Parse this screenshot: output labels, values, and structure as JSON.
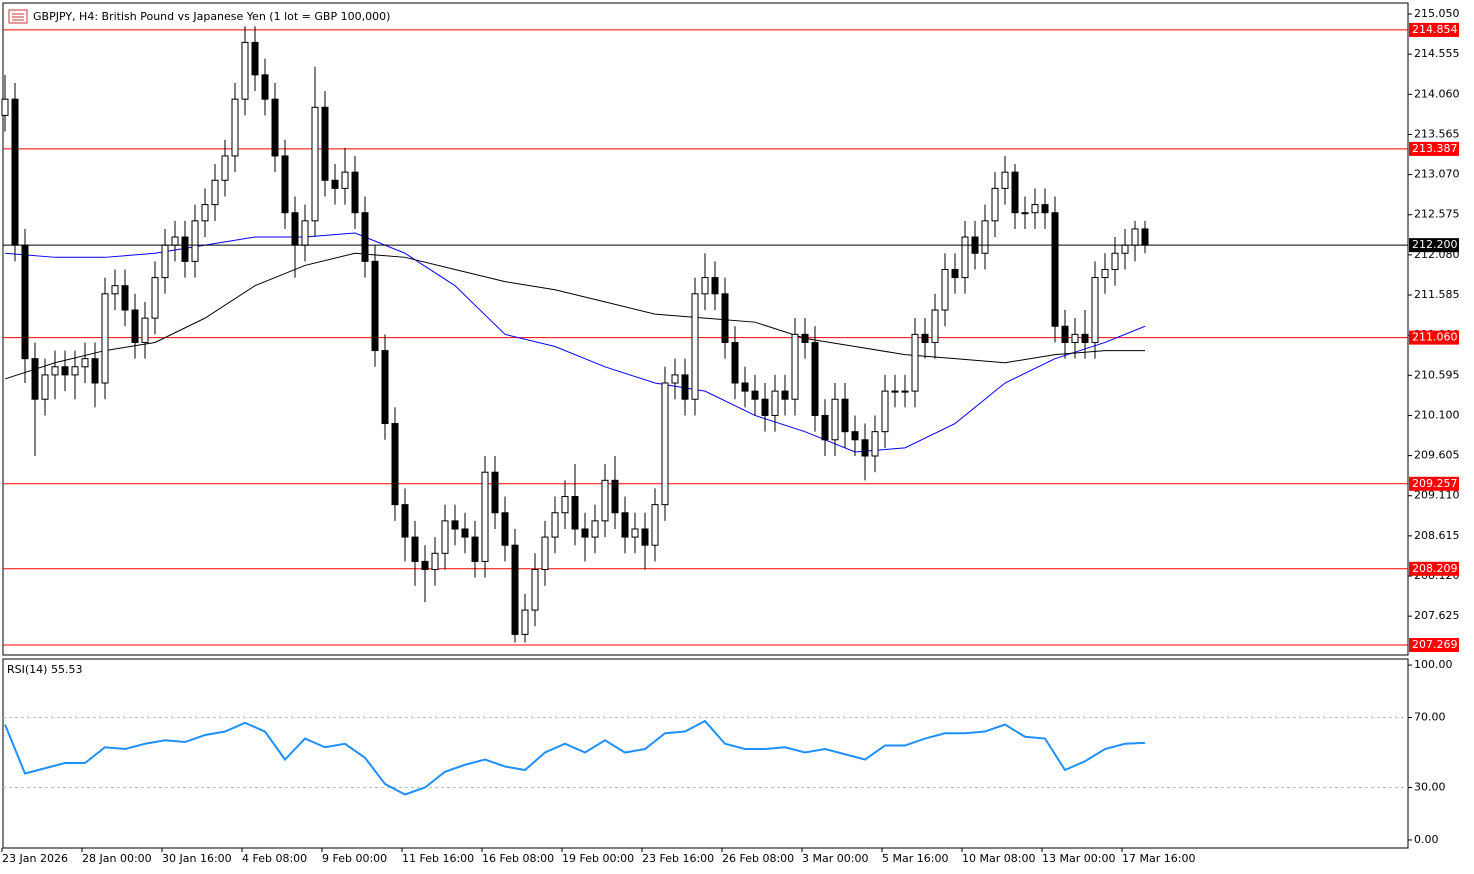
{
  "chart_data": {
    "type": "candlestick",
    "title": "GBPJPY, H4:  British Pound vs Japanese Yen (1 lot = GBP 100,000)",
    "open": [
      213.8,
      214.0,
      212.2,
      210.8,
      210.3,
      210.6,
      210.7,
      210.6,
      210.7,
      210.8,
      210.5,
      211.6,
      211.7,
      211.4,
      211.0,
      211.3,
      211.8,
      212.2,
      212.3,
      212.0,
      212.5,
      212.7,
      213.0,
      213.3,
      214.0,
      214.7,
      214.3,
      214.0,
      213.3,
      212.6,
      212.2,
      212.5,
      213.9,
      213.0,
      212.9,
      213.1,
      212.6,
      212.0,
      210.9,
      210.0,
      209.0,
      208.6,
      208.3,
      208.2,
      208.4,
      208.8,
      208.7,
      208.6,
      208.3,
      209.4,
      208.9,
      208.5,
      207.4,
      207.7,
      208.2,
      208.6,
      208.9,
      209.1,
      208.7,
      208.6,
      208.8,
      209.3,
      208.9,
      208.6,
      208.7,
      208.5,
      209.0,
      210.5,
      210.6,
      210.3,
      211.6,
      211.8,
      211.6,
      211.0,
      210.5,
      210.4,
      210.3,
      210.1,
      210.4,
      210.3,
      211.1,
      211.0,
      210.1,
      209.8,
      210.3,
      209.9,
      209.8,
      209.6,
      209.9,
      210.4,
      210.4,
      210.4,
      211.1,
      211.0,
      211.4,
      211.9,
      211.8,
      212.3,
      212.1,
      212.5,
      212.9,
      213.1,
      212.6,
      212.6,
      212.7,
      212.6,
      211.2,
      211.0,
      211.1,
      211.0,
      211.8,
      211.9,
      212.1,
      212.2,
      212.4
    ],
    "high": [
      214.3,
      214.2,
      212.4,
      211.0,
      210.8,
      210.9,
      210.9,
      210.9,
      211.0,
      211.0,
      211.8,
      211.9,
      211.9,
      211.6,
      211.5,
      212.0,
      212.4,
      212.5,
      212.5,
      212.7,
      212.9,
      213.2,
      213.5,
      214.2,
      214.9,
      214.9,
      214.5,
      214.2,
      213.5,
      212.8,
      212.7,
      214.4,
      214.1,
      213.2,
      213.4,
      213.3,
      212.8,
      212.2,
      211.1,
      210.2,
      209.2,
      208.8,
      208.5,
      208.6,
      209.0,
      209.0,
      208.9,
      208.8,
      209.6,
      209.6,
      209.1,
      208.7,
      207.9,
      208.4,
      208.8,
      209.1,
      209.3,
      209.5,
      208.9,
      209.0,
      209.5,
      209.6,
      209.1,
      208.9,
      208.9,
      209.2,
      210.7,
      210.8,
      210.8,
      211.8,
      212.1,
      212.0,
      211.8,
      211.2,
      210.7,
      210.6,
      210.5,
      210.6,
      210.6,
      211.3,
      211.3,
      211.2,
      210.3,
      210.5,
      210.5,
      210.1,
      210.0,
      210.1,
      210.6,
      210.6,
      210.6,
      211.3,
      211.3,
      211.6,
      212.1,
      212.1,
      212.5,
      212.5,
      212.7,
      213.1,
      213.3,
      213.2,
      212.8,
      212.9,
      212.9,
      212.8,
      211.4,
      211.3,
      211.4,
      212.0,
      212.1,
      212.3,
      212.4,
      212.5,
      212.5
    ],
    "low": [
      213.6,
      212.0,
      210.5,
      209.6,
      210.1,
      210.3,
      210.4,
      210.3,
      210.5,
      210.2,
      210.3,
      211.4,
      211.2,
      210.8,
      210.8,
      211.1,
      211.6,
      212.0,
      211.8,
      211.8,
      212.3,
      212.5,
      212.8,
      213.1,
      213.8,
      214.1,
      213.8,
      213.1,
      212.4,
      211.8,
      212.0,
      212.3,
      212.8,
      212.7,
      212.7,
      212.4,
      211.8,
      210.7,
      209.8,
      208.8,
      208.3,
      208.0,
      207.8,
      208.0,
      208.2,
      208.5,
      208.4,
      208.1,
      208.1,
      208.7,
      208.3,
      207.3,
      207.3,
      207.5,
      208.0,
      208.4,
      208.7,
      208.5,
      208.3,
      208.4,
      208.6,
      208.7,
      208.4,
      208.4,
      208.2,
      208.3,
      208.8,
      210.3,
      210.1,
      210.1,
      211.4,
      211.4,
      210.8,
      210.3,
      210.2,
      210.1,
      209.9,
      209.9,
      210.1,
      210.1,
      210.8,
      209.9,
      209.6,
      209.6,
      209.7,
      209.6,
      209.3,
      209.4,
      209.7,
      210.2,
      210.2,
      210.2,
      210.8,
      210.8,
      211.2,
      211.6,
      211.6,
      211.9,
      211.9,
      212.3,
      212.7,
      212.4,
      212.4,
      212.4,
      212.4,
      211.0,
      210.8,
      210.8,
      210.8,
      210.8,
      211.6,
      211.7,
      211.9,
      212.0,
      212.1
    ],
    "close": [
      214.0,
      212.2,
      210.8,
      210.3,
      210.6,
      210.7,
      210.6,
      210.7,
      210.8,
      210.5,
      211.6,
      211.7,
      211.4,
      211.0,
      211.3,
      211.8,
      212.2,
      212.3,
      212.0,
      212.5,
      212.7,
      213.0,
      213.3,
      214.0,
      214.7,
      214.3,
      214.0,
      213.3,
      212.6,
      212.2,
      212.5,
      213.9,
      213.0,
      212.9,
      213.1,
      212.6,
      212.0,
      210.9,
      210.0,
      209.0,
      208.6,
      208.3,
      208.2,
      208.4,
      208.8,
      208.7,
      208.6,
      208.3,
      209.4,
      208.9,
      208.5,
      207.4,
      207.7,
      208.2,
      208.6,
      208.9,
      209.1,
      208.7,
      208.6,
      208.8,
      209.3,
      208.9,
      208.6,
      208.7,
      208.5,
      209.0,
      210.5,
      210.6,
      210.3,
      211.6,
      211.8,
      211.6,
      211.0,
      210.5,
      210.4,
      210.3,
      210.1,
      210.4,
      210.3,
      211.1,
      211.0,
      210.1,
      209.8,
      210.3,
      209.9,
      209.8,
      209.6,
      209.9,
      210.4,
      210.4,
      210.4,
      211.1,
      211.0,
      211.4,
      211.9,
      211.8,
      212.3,
      212.1,
      212.5,
      212.9,
      213.1,
      212.6,
      212.6,
      212.7,
      212.6,
      211.2,
      211.0,
      211.1,
      211.0,
      211.8,
      211.9,
      212.1,
      212.2,
      212.4,
      212.2
    ],
    "ylim": [
      207.146,
      215.186
    ],
    "yticks": [
      {
        "value": 215.05,
        "label": "215.050"
      },
      214.555,
      {
        "value": 214.06,
        "label": "214.060"
      },
      213.565,
      {
        "value": 213.07,
        "label": "213.070"
      },
      212.575,
      {
        "value": 212.08,
        "label": "212.080"
      },
      211.585,
      {
        "value": 211.09,
        "label": "211.090"
      },
      210.595,
      {
        "value": 210.1,
        "label": "210.100"
      },
      209.605,
      {
        "value": 209.11,
        "label": "209.110"
      },
      208.615,
      {
        "value": 208.12,
        "label": "208.120"
      },
      207.625
    ],
    "levels": [
      214.854,
      213.387,
      {
        "value": 211.06,
        "label": "211.060"
      },
      209.257,
      208.209,
      207.269
    ],
    "level_color": "#ff0000",
    "current_price": {
      "value": 212.2,
      "label": "212.200"
    },
    "ma_x": [
      0,
      5,
      10,
      15,
      20,
      25,
      30,
      35,
      40,
      45,
      50,
      55,
      60,
      65,
      70,
      75,
      80,
      85,
      90,
      95,
      100,
      105,
      110,
      114
    ],
    "moving_averages": [
      {
        "color": "#0000ff",
        "values": [
          212.1,
          212.05,
          212.05,
          212.1,
          212.2,
          212.3,
          212.3,
          212.35,
          212.1,
          211.7,
          211.1,
          210.95,
          210.7,
          210.5,
          210.4,
          210.1,
          209.9,
          209.65,
          209.7,
          210.0,
          210.5,
          210.8,
          211.0,
          211.2
        ]
      },
      {
        "color": "#000000",
        "values": [
          210.55,
          210.75,
          210.9,
          211.0,
          211.3,
          211.7,
          211.95,
          212.1,
          212.05,
          211.9,
          211.75,
          211.65,
          211.5,
          211.35,
          211.3,
          211.25,
          211.05,
          210.95,
          210.85,
          210.8,
          210.75,
          210.85,
          210.9,
          210.9
        ]
      }
    ],
    "xticks": [
      {
        "value": 0,
        "label": "23 Jan 2026"
      },
      {
        "value": 8,
        "label": "28 Jan 00:00"
      },
      {
        "value": 16,
        "label": "30 Jan 16:00"
      },
      {
        "value": 24,
        "label": "4 Feb 08:00"
      },
      {
        "value": 32,
        "label": "9 Feb 00:00"
      },
      {
        "value": 40,
        "label": "11 Feb 16:00"
      },
      {
        "value": 48,
        "label": "16 Feb 08:00"
      },
      {
        "value": 56,
        "label": "19 Feb 00:00"
      },
      {
        "value": 64,
        "label": "23 Feb 16:00"
      },
      {
        "value": 72,
        "label": "26 Feb 08:00"
      },
      {
        "value": 80,
        "label": "3 Mar 00:00"
      },
      {
        "value": 88,
        "label": "5 Mar 16:00"
      },
      {
        "value": 96,
        "label": "10 Mar 08:00"
      },
      {
        "value": 104,
        "label": "13 Mar 00:00"
      },
      {
        "value": 112,
        "label": "17 Mar 16:00"
      }
    ],
    "rsi": {
      "label": "RSI(14) 55.53",
      "color": "#1e90ff",
      "x": [
        0,
        2,
        4,
        6,
        8,
        10,
        12,
        14,
        16,
        18,
        20,
        22,
        24,
        26,
        28,
        30,
        32,
        34,
        36,
        38,
        40,
        42,
        44,
        46,
        48,
        50,
        52,
        54,
        56,
        58,
        60,
        62,
        64,
        66,
        68,
        70,
        72,
        74,
        76,
        78,
        80,
        82,
        84,
        86,
        88,
        90,
        92,
        94,
        96,
        98,
        100,
        102,
        104,
        106,
        108,
        110,
        112,
        114
      ],
      "values": [
        66,
        38,
        41,
        44,
        44,
        53,
        52,
        55,
        57,
        56,
        60,
        62,
        67,
        62,
        46,
        58,
        53,
        55,
        47,
        32,
        26,
        30,
        39,
        43,
        46,
        42,
        40,
        50,
        55,
        50,
        57,
        50,
        52,
        61,
        62,
        68,
        55,
        52,
        52,
        53,
        50,
        52,
        49,
        46,
        54,
        54,
        58,
        61,
        61,
        62,
        66,
        59,
        58,
        40,
        45,
        52,
        55,
        55.53
      ],
      "ylim": [
        -4.6,
        102.9
      ],
      "yticks": [
        {
          "value": 100,
          "label": "100.00"
        },
        {
          "value": 70,
          "label": "70.00"
        },
        {
          "value": 30,
          "label": "30.00"
        },
        {
          "value": 0,
          "label": "0.00"
        }
      ],
      "levels": [
        70,
        30
      ]
    }
  }
}
